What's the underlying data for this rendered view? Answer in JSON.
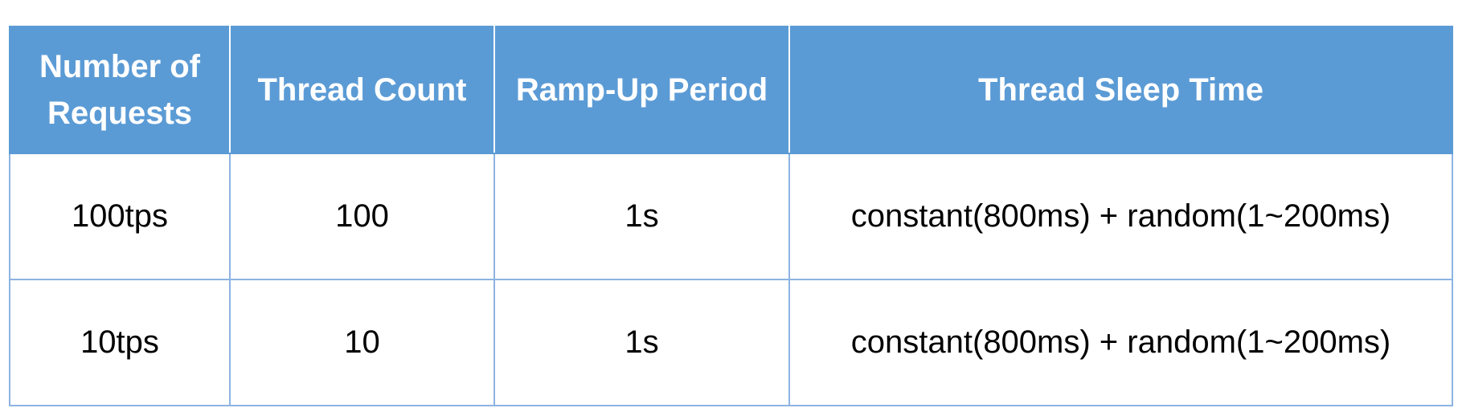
{
  "table": {
    "headers": [
      "Number of Requests",
      "Thread Count",
      "Ramp-Up Period",
      "Thread Sleep Time"
    ],
    "rows": [
      [
        "100tps",
        "100",
        "1s",
        "constant(800ms) + random(1~200ms)"
      ],
      [
        "10tps",
        "10",
        "1s",
        "constant(800ms) + random(1~200ms)"
      ]
    ]
  },
  "colors": {
    "header_background": "#5b9bd5",
    "header_text": "#ffffff",
    "cell_border": "#8db3e2"
  }
}
